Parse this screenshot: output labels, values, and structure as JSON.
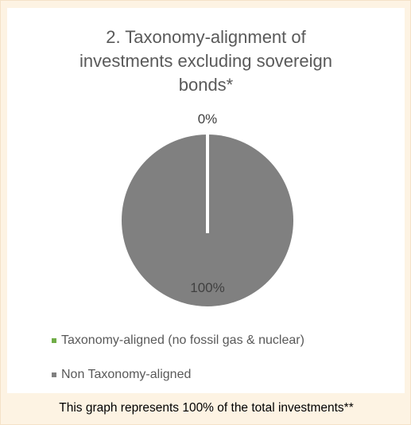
{
  "chart_data": {
    "type": "pie",
    "title": "2. Taxonomy-alignment of\ninvestments excluding sovereign\nbonds*",
    "slices": [
      {
        "label": "Taxonomy-aligned (no fossil gas & nuclear)",
        "value": 0,
        "data_label": "0%",
        "color": "#70ad47"
      },
      {
        "label": "Non Taxonomy-aligned",
        "value": 100,
        "data_label": "100%",
        "color": "#808080"
      }
    ],
    "legend_position": "bottom"
  },
  "caption": "This graph represents 100% of the total investments**"
}
